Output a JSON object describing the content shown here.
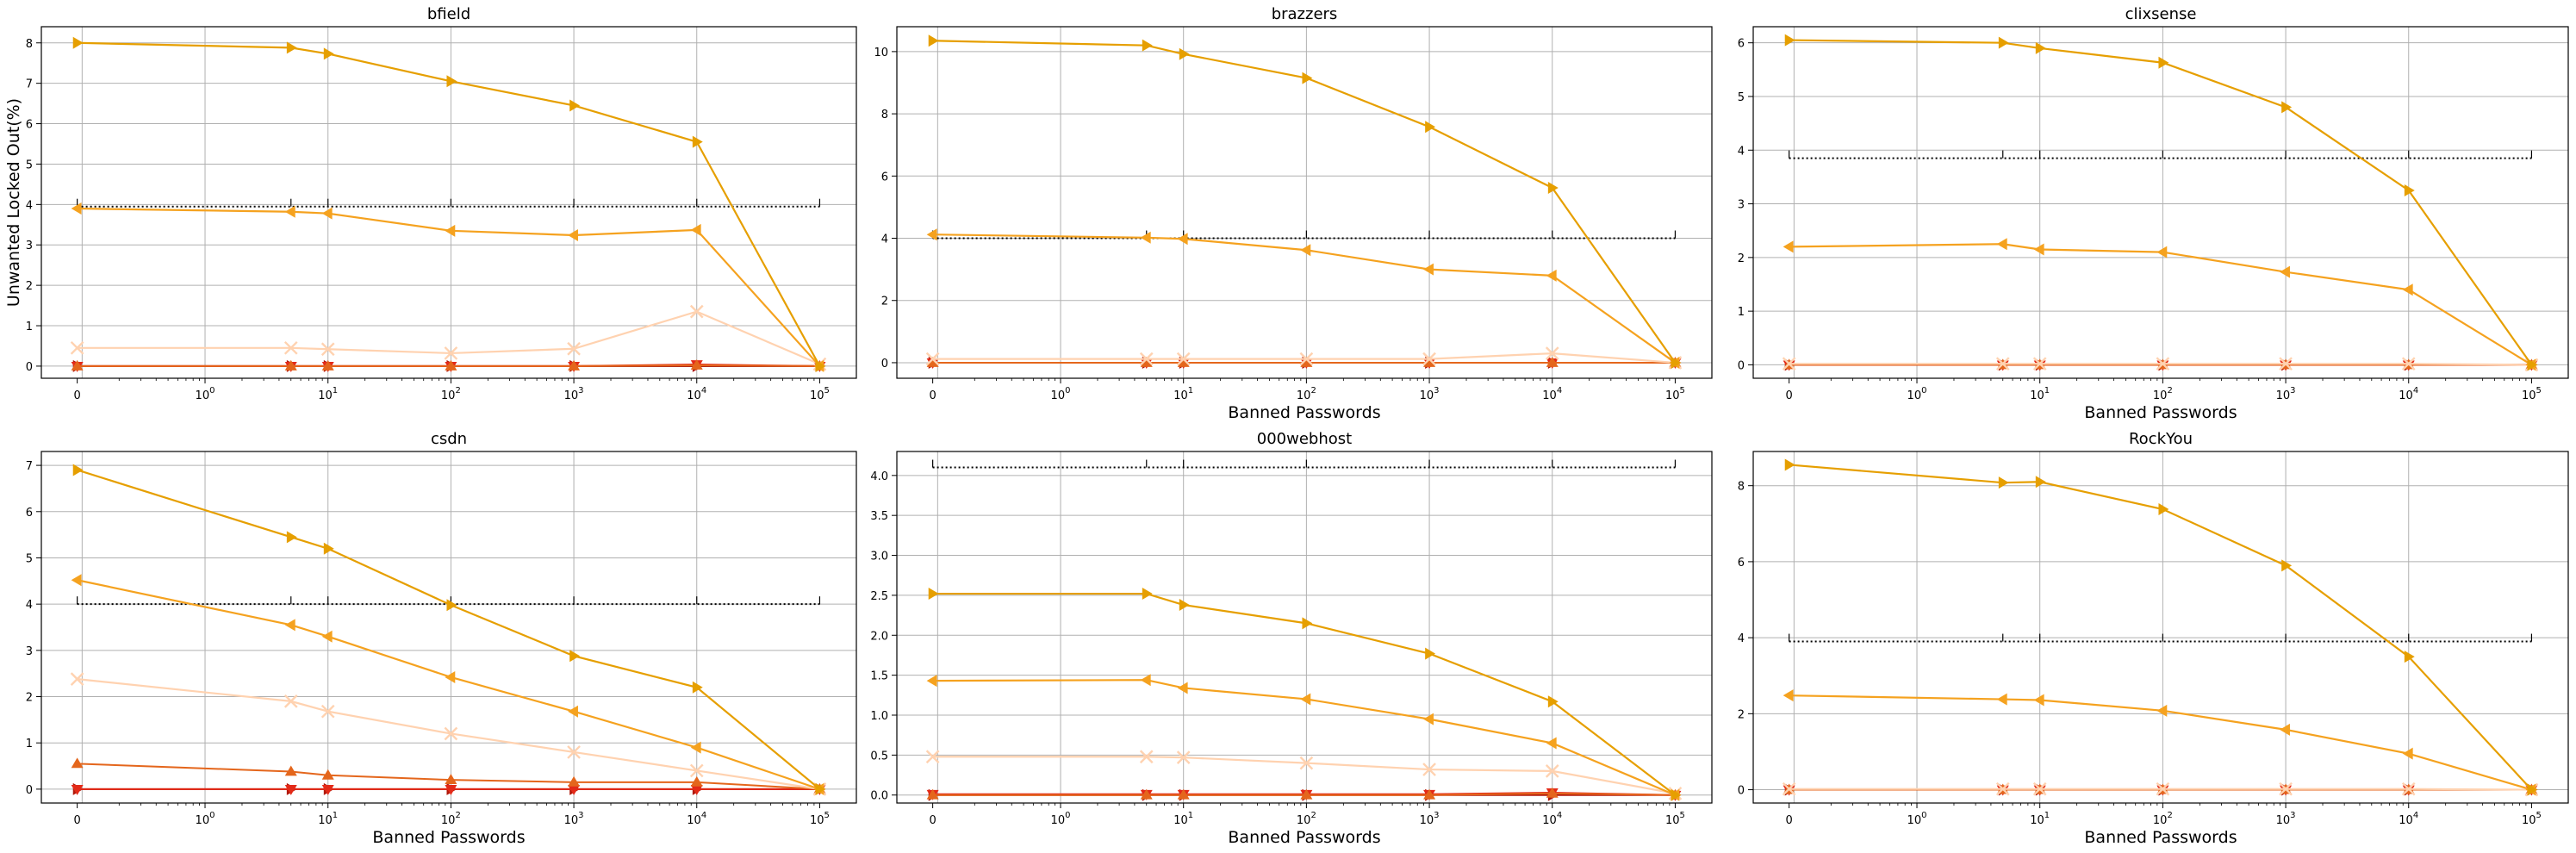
{
  "figure": {
    "ylabel": "Unwanted Locked Out(%)",
    "xlabel": "Banned Passwords",
    "colors": {
      "s1": "#e69f00",
      "s2": "#f5a21f",
      "s3": "#ffd2b0",
      "s4": "#e4661c",
      "s5": "#e32a18",
      "s6": "#b0180a",
      "grid": "#b0b0b0"
    }
  },
  "chart_data": [
    {
      "type": "line",
      "title": "bfield",
      "xlabel": "",
      "ylabel": "Unwanted Locked Out(%)",
      "x_scale": "symlog",
      "x_ticks": [
        "0",
        "10^0",
        "10^1",
        "10^2",
        "10^3",
        "10^4",
        "10^5"
      ],
      "x": [
        0,
        5,
        10,
        100,
        1000,
        10000,
        100000
      ],
      "ylim": [
        -0.3,
        8.4
      ],
      "y_ticks": [
        0,
        1,
        2,
        3,
        4,
        5,
        6,
        7,
        8
      ],
      "reference_level": 3.95,
      "series": [
        {
          "values": [
            8.0,
            7.88,
            7.73,
            7.05,
            6.45,
            5.55,
            0.0
          ]
        },
        {
          "values": [
            3.9,
            3.82,
            3.78,
            3.35,
            3.24,
            3.37,
            0.0
          ]
        },
        {
          "values": [
            0.45,
            0.45,
            0.42,
            0.32,
            0.43,
            1.35,
            0.05
          ]
        },
        {
          "values": [
            0.0,
            0.0,
            0.0,
            0.0,
            0.0,
            0.02,
            0.0
          ]
        },
        {
          "values": [
            0.0,
            0.0,
            0.0,
            0.0,
            0.0,
            0.04,
            0.0
          ]
        },
        {
          "values": [
            0.0,
            0.0,
            0.0,
            0.0,
            0.0,
            0.0,
            0.0
          ]
        }
      ]
    },
    {
      "type": "line",
      "title": "brazzers",
      "xlabel": "Banned Passwords",
      "ylabel": "",
      "x_scale": "symlog",
      "x_ticks": [
        "0",
        "10^0",
        "10^1",
        "10^2",
        "10^3",
        "10^4",
        "10^5"
      ],
      "x": [
        0,
        5,
        10,
        100,
        1000,
        10000,
        100000
      ],
      "ylim": [
        -0.5,
        10.8
      ],
      "y_ticks": [
        0,
        2,
        4,
        6,
        8,
        10
      ],
      "reference_level": 4.0,
      "series": [
        {
          "values": [
            10.35,
            10.2,
            9.92,
            9.15,
            7.58,
            5.62,
            0.0
          ]
        },
        {
          "values": [
            4.12,
            4.02,
            3.98,
            3.62,
            3.0,
            2.8,
            0.0
          ]
        },
        {
          "values": [
            0.12,
            0.12,
            0.12,
            0.12,
            0.12,
            0.3,
            0.0
          ]
        },
        {
          "values": [
            0.0,
            0.0,
            0.0,
            0.0,
            0.0,
            0.0,
            0.0
          ]
        },
        {
          "values": [
            0.0,
            0.0,
            0.0,
            0.0,
            0.0,
            0.0,
            0.0
          ]
        },
        {
          "values": [
            0.0,
            0.0,
            0.0,
            0.0,
            0.0,
            0.0,
            0.0
          ]
        }
      ]
    },
    {
      "type": "line",
      "title": "clixsense",
      "xlabel": "Banned Passwords",
      "ylabel": "",
      "x_scale": "symlog",
      "x_ticks": [
        "0",
        "10^0",
        "10^1",
        "10^2",
        "10^3",
        "10^4",
        "10^5"
      ],
      "x": [
        0,
        5,
        10,
        100,
        1000,
        10000,
        100000
      ],
      "ylim": [
        -0.25,
        6.3
      ],
      "y_ticks": [
        0,
        1,
        2,
        3,
        4,
        5,
        6
      ],
      "reference_level": 3.85,
      "series": [
        {
          "values": [
            6.05,
            6.0,
            5.9,
            5.63,
            4.8,
            3.25,
            0.0
          ]
        },
        {
          "values": [
            2.2,
            2.25,
            2.15,
            2.1,
            1.73,
            1.4,
            0.0
          ]
        },
        {
          "values": [
            0.02,
            0.02,
            0.02,
            0.02,
            0.02,
            0.02,
            0.0
          ]
        },
        {
          "values": [
            0.0,
            0.0,
            0.0,
            0.0,
            0.0,
            0.0,
            0.0
          ]
        },
        {
          "values": [
            0.0,
            0.0,
            0.0,
            0.0,
            0.0,
            0.0,
            0.0
          ]
        },
        {
          "values": [
            0.0,
            0.0,
            0.0,
            0.0,
            0.0,
            0.0,
            0.0
          ]
        }
      ]
    },
    {
      "type": "line",
      "title": "csdn",
      "xlabel": "Banned Passwords",
      "ylabel": "",
      "x_scale": "symlog",
      "x_ticks": [
        "0",
        "10^0",
        "10^1",
        "10^2",
        "10^3",
        "10^4",
        "10^5"
      ],
      "x": [
        0,
        5,
        10,
        100,
        1000,
        10000,
        100000
      ],
      "ylim": [
        -0.3,
        7.3
      ],
      "y_ticks": [
        0,
        1,
        2,
        3,
        4,
        5,
        6,
        7
      ],
      "reference_level": 4.0,
      "series": [
        {
          "values": [
            6.9,
            5.45,
            5.2,
            3.98,
            2.88,
            2.2,
            0.0
          ]
        },
        {
          "values": [
            4.52,
            3.55,
            3.3,
            2.42,
            1.68,
            0.9,
            0.0
          ]
        },
        {
          "values": [
            2.38,
            1.9,
            1.68,
            1.2,
            0.8,
            0.4,
            0.0
          ]
        },
        {
          "values": [
            0.55,
            0.38,
            0.3,
            0.2,
            0.15,
            0.15,
            0.0
          ]
        },
        {
          "values": [
            0.0,
            0.0,
            0.0,
            0.0,
            0.0,
            0.0,
            0.0
          ]
        },
        {
          "values": [
            0.0,
            0.0,
            0.0,
            0.0,
            0.0,
            0.0,
            0.0
          ]
        }
      ]
    },
    {
      "type": "line",
      "title": "000webhost",
      "xlabel": "Banned Passwords",
      "ylabel": "",
      "x_scale": "symlog",
      "x_ticks": [
        "0",
        "10^0",
        "10^1",
        "10^2",
        "10^3",
        "10^4",
        "10^5"
      ],
      "x": [
        0,
        5,
        10,
        100,
        1000,
        10000,
        100000
      ],
      "ylim": [
        -0.1,
        4.3
      ],
      "y_ticks": [
        "0.0",
        "0.5",
        "1.0",
        "1.5",
        "2.0",
        "2.5",
        "3.0",
        "3.5",
        "4.0"
      ],
      "reference_level": 4.1,
      "series": [
        {
          "values": [
            2.52,
            2.52,
            2.38,
            2.15,
            1.77,
            1.17,
            0.0
          ]
        },
        {
          "values": [
            1.43,
            1.44,
            1.34,
            1.2,
            0.95,
            0.65,
            0.0
          ]
        },
        {
          "values": [
            0.48,
            0.48,
            0.47,
            0.4,
            0.32,
            0.3,
            0.02
          ]
        },
        {
          "values": [
            0.0,
            0.0,
            0.0,
            0.0,
            0.0,
            0.02,
            0.0
          ]
        },
        {
          "values": [
            0.01,
            0.01,
            0.01,
            0.01,
            0.01,
            0.03,
            0.0
          ]
        },
        {
          "values": [
            0.0,
            0.0,
            0.0,
            0.0,
            0.0,
            0.0,
            0.0
          ]
        }
      ]
    },
    {
      "type": "line",
      "title": "RockYou",
      "xlabel": "Banned Passwords",
      "ylabel": "",
      "x_scale": "symlog",
      "x_ticks": [
        "0",
        "10^0",
        "10^1",
        "10^2",
        "10^3",
        "10^4",
        "10^5"
      ],
      "x": [
        0,
        5,
        10,
        100,
        1000,
        10000,
        100000
      ],
      "ylim": [
        -0.35,
        8.9
      ],
      "y_ticks": [
        0,
        2,
        4,
        6,
        8
      ],
      "reference_level": 3.9,
      "series": [
        {
          "values": [
            8.55,
            8.08,
            8.1,
            7.38,
            5.9,
            3.5,
            0.0
          ]
        },
        {
          "values": [
            2.48,
            2.38,
            2.36,
            2.08,
            1.58,
            0.95,
            0.0
          ]
        },
        {
          "values": [
            0.02,
            0.02,
            0.02,
            0.02,
            0.02,
            0.02,
            0.0
          ]
        },
        {
          "values": [
            0.0,
            0.0,
            0.0,
            0.0,
            0.0,
            0.0,
            0.0
          ]
        },
        {
          "values": [
            0.0,
            0.0,
            0.0,
            0.0,
            0.0,
            0.0,
            0.0
          ]
        },
        {
          "values": [
            0.0,
            0.0,
            0.0,
            0.0,
            0.0,
            0.0,
            0.0
          ]
        }
      ]
    }
  ]
}
